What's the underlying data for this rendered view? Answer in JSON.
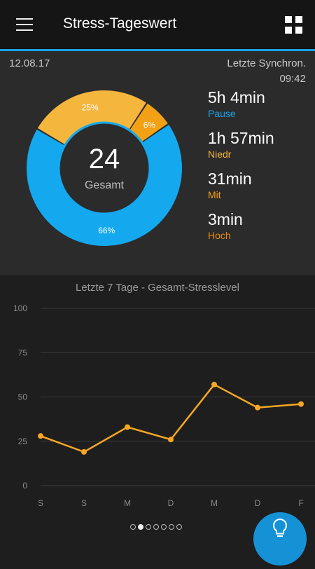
{
  "header": {
    "title": "Stress-Tageswert",
    "menu_icon": "hamburger-menu-icon",
    "grid_icon": "grid-view-icon"
  },
  "summary": {
    "date": "12.08.17",
    "sync_label": "Letzte Synchron.",
    "sync_time": "09:42",
    "total_value": "24",
    "total_label": "Gesamt",
    "segments": [
      {
        "label": "25%",
        "percent": 25,
        "color": "#f5b63d"
      },
      {
        "label": "6%",
        "percent": 6,
        "color": "#f2a014"
      },
      {
        "label": "66%",
        "percent": 66,
        "color": "#14a9ee"
      }
    ],
    "stats": [
      {
        "value": "5h 4min",
        "label": "Pause",
        "color": "#1aa3e8"
      },
      {
        "value": "1h 57min",
        "label": "Niedr",
        "color": "#f5b63d"
      },
      {
        "value": "31min",
        "label": "Mit",
        "color": "#f2a014"
      },
      {
        "value": "3min",
        "label": "Hoch",
        "color": "#e88a10"
      }
    ]
  },
  "chart_data": {
    "type": "line",
    "title": "Letzte 7 Tage - Gesamt-Stresslevel",
    "categories": [
      "S",
      "S",
      "M",
      "D",
      "M",
      "D",
      "F"
    ],
    "values": [
      28,
      19,
      33,
      26,
      57,
      44,
      46
    ],
    "yticks": [
      0,
      25,
      50,
      75,
      100
    ],
    "ylim": [
      0,
      100
    ],
    "grid": true,
    "line_color": "#f5a623"
  },
  "pager": {
    "count": 7,
    "active": 1
  },
  "fab": {
    "icon": "lightbulb-icon",
    "color": "#1592d6"
  }
}
